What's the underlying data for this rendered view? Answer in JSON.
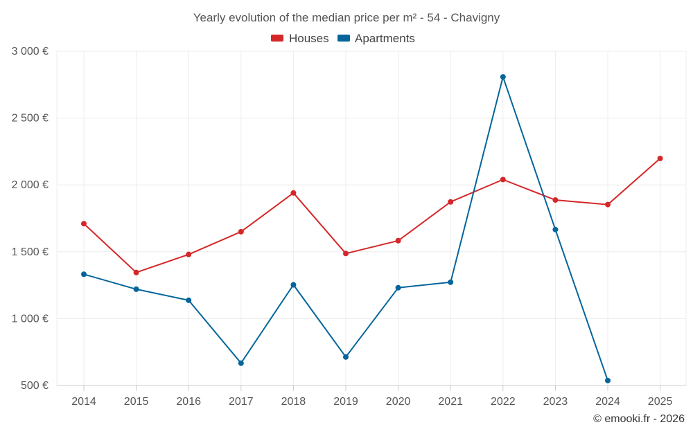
{
  "chart_data": {
    "type": "line",
    "title": "Yearly evolution of the median price per m² - 54 - Chavigny",
    "categories": [
      "2014",
      "2015",
      "2016",
      "2017",
      "2018",
      "2019",
      "2020",
      "2021",
      "2022",
      "2023",
      "2024",
      "2025"
    ],
    "y_tick_labels": [
      "500 €",
      "1 000 €",
      "1 500 €",
      "2 000 €",
      "2 500 €",
      "3 000 €"
    ],
    "y_ticks": [
      500,
      1000,
      1500,
      2000,
      2500,
      3000
    ],
    "ylim": [
      500,
      3000
    ],
    "grid": true,
    "legend_position": "top-center",
    "series": [
      {
        "name": "Houses",
        "color": "#d62728",
        "values": [
          1710,
          1345,
          1480,
          1650,
          1940,
          1487,
          1583,
          1873,
          2040,
          1887,
          1853,
          2198
        ]
      },
      {
        "name": "Apartments",
        "color": "#03659a",
        "values": [
          1332,
          1220,
          1137,
          667,
          1253,
          713,
          1231,
          1272,
          2808,
          1666,
          537,
          null
        ]
      }
    ]
  },
  "credit": "© emooki.fr - 2026"
}
